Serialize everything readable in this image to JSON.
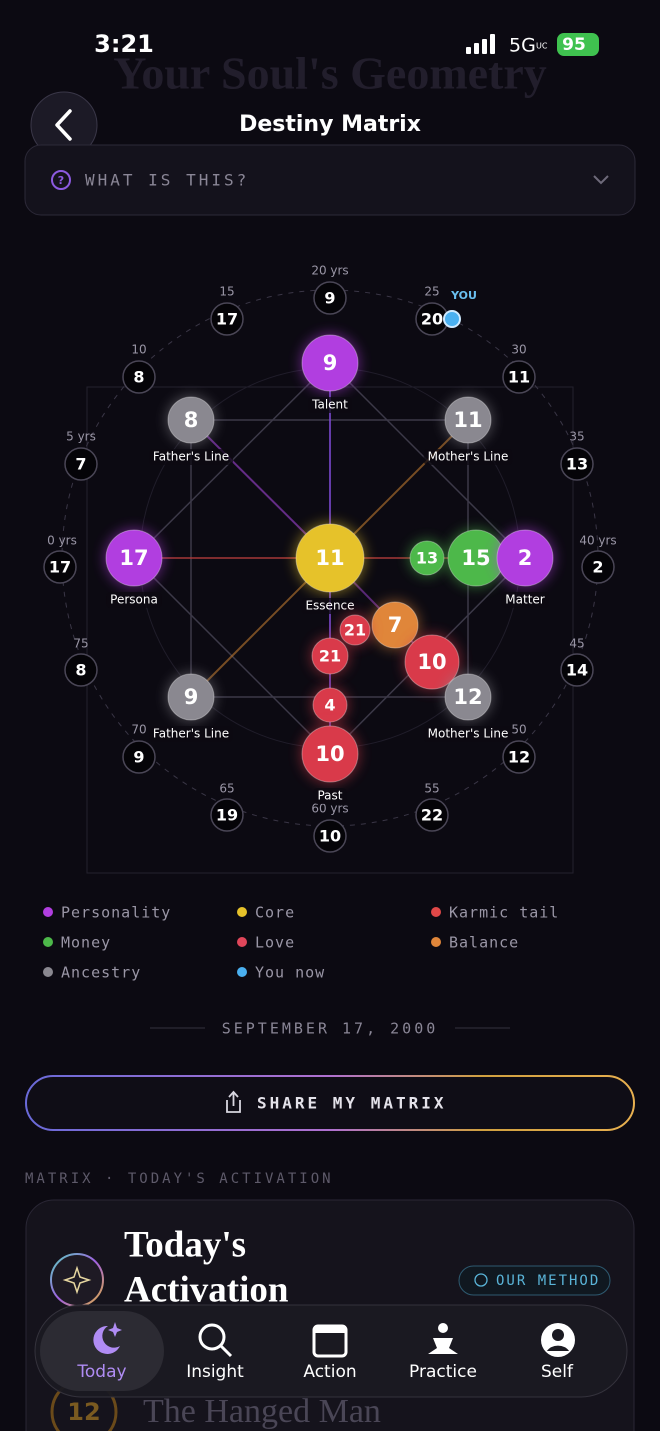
{
  "status": {
    "time": "3:21",
    "network": "5G",
    "network_sub": "UC",
    "battery": "95"
  },
  "header": {
    "background_title": "Your Soul's Geometry",
    "title": "Destiny Matrix"
  },
  "info": {
    "label": "WHAT IS THIS?"
  },
  "matrix": {
    "you_label": "YOU",
    "ring": [
      {
        "age": "0 yrs",
        "value": 17
      },
      {
        "age": "5 yrs",
        "value": 7
      },
      {
        "age": "10",
        "value": 8
      },
      {
        "age": "15",
        "value": 17
      },
      {
        "age": "20 yrs",
        "value": 9
      },
      {
        "age": "25",
        "value": 20
      },
      {
        "age": "30",
        "value": 11
      },
      {
        "age": "35",
        "value": 13
      },
      {
        "age": "40 yrs",
        "value": 2
      },
      {
        "age": "45",
        "value": 14
      },
      {
        "age": "50",
        "value": 12
      },
      {
        "age": "55",
        "value": 22
      },
      {
        "age": "60 yrs",
        "value": 10
      },
      {
        "age": "65",
        "value": 19
      },
      {
        "age": "70",
        "value": 9
      },
      {
        "age": "75",
        "value": 8
      }
    ],
    "nodes": [
      {
        "value": 9,
        "label": "Talent"
      },
      {
        "value": 8,
        "label": "Father's Line"
      },
      {
        "value": 11,
        "label": "Mother's Line"
      },
      {
        "value": 17,
        "label": "Persona"
      },
      {
        "value": 11,
        "label": "Essence"
      },
      {
        "value": 13
      },
      {
        "value": 15
      },
      {
        "value": 2,
        "label": "Matter"
      },
      {
        "value": 7
      },
      {
        "value": 21
      },
      {
        "value": 21
      },
      {
        "value": 10
      },
      {
        "value": 9,
        "label": "Father's Line"
      },
      {
        "value": 12,
        "label": "Mother's Line"
      },
      {
        "value": 4
      },
      {
        "value": 10,
        "label": "Past"
      }
    ]
  },
  "legend": [
    "Personality",
    "Core",
    "Karmic tail",
    "Money",
    "Love",
    "Balance",
    "Ancestry",
    "You now"
  ],
  "date": "SEPTEMBER 17, 2000",
  "share_button": "SHARE MY MATRIX",
  "section_label": "MATRIX · TODAY'S ACTIVATION",
  "card": {
    "title_line1": "Today's",
    "title_line2": "Activation",
    "method_button": "OUR METHOD",
    "card_number": "12",
    "card_name": "The Hanged Man"
  },
  "nav": [
    "Today",
    "Insight",
    "Action",
    "Practice",
    "Self"
  ]
}
